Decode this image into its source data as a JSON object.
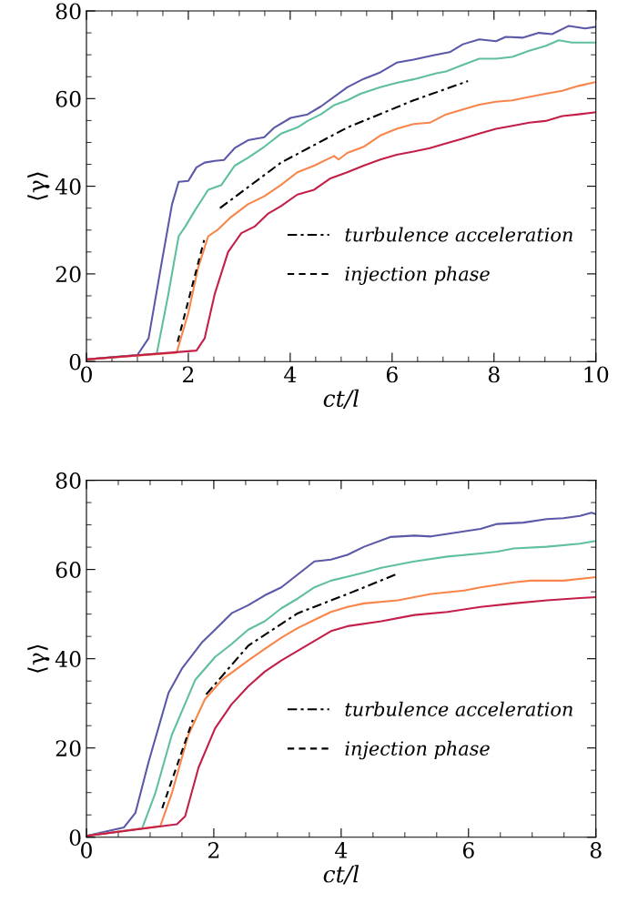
{
  "chart_data": [
    {
      "type": "line",
      "xlabel": "ct/l",
      "ylabel": "⟨γ⟩",
      "xlim": [
        0,
        10
      ],
      "ylim": [
        0,
        80
      ],
      "xticks": [
        0,
        2,
        4,
        6,
        8,
        10
      ],
      "yticks": [
        0,
        20,
        40,
        60,
        80
      ],
      "grid": false,
      "legend": "bottom right",
      "series": [
        {
          "color": "#5b58a8",
          "x": [
            0,
            1.0,
            1.22,
            1.48,
            1.68,
            1.81,
            2.0,
            2.16,
            2.32,
            2.52,
            2.7,
            2.91,
            3.17,
            3.49,
            3.69,
            4.01,
            4.34,
            4.6,
            5.12,
            5.44,
            5.77,
            6.09,
            6.42,
            6.81,
            7.13,
            7.39,
            7.71,
            8.04,
            8.23,
            8.56,
            8.88,
            9.14,
            9.47,
            9.79,
            10
          ],
          "values": [
            0.5,
            1.5,
            5.3,
            22.8,
            35.9,
            41,
            41.2,
            44.3,
            45.4,
            45.8,
            46,
            48.7,
            50.5,
            51.2,
            53.4,
            55.6,
            56.4,
            58.2,
            62.6,
            64.5,
            66,
            68.2,
            68.9,
            69.9,
            70.6,
            72.4,
            73.5,
            73.1,
            74.1,
            73.9,
            75,
            74.7,
            76.6,
            76,
            76.4
          ]
        },
        {
          "color": "#5fbf9f",
          "x": [
            0,
            1.38,
            1.61,
            1.81,
            1.94,
            2.13,
            2.39,
            2.65,
            2.91,
            3.17,
            3.49,
            3.82,
            4.14,
            4.34,
            4.6,
            4.86,
            5.12,
            5.38,
            5.77,
            6.09,
            6.42,
            6.87,
            7.06,
            7.39,
            7.71,
            8.04,
            8.36,
            8.69,
            9.01,
            9.27,
            9.53,
            10
          ],
          "values": [
            0.5,
            1.8,
            15.5,
            28.6,
            30.8,
            34.5,
            39.2,
            40.3,
            44.7,
            46.5,
            49,
            52,
            53.4,
            54.9,
            56.4,
            58.5,
            59.6,
            61.1,
            62.6,
            63.6,
            64.4,
            65.8,
            66.2,
            67.7,
            69.1,
            69.1,
            69.5,
            70.9,
            72,
            73.3,
            72.8,
            72.8
          ]
        },
        {
          "color": "#f8854a",
          "x": [
            0,
            1.77,
            2.0,
            2.19,
            2.39,
            2.58,
            2.84,
            3.17,
            3.49,
            3.82,
            4.14,
            4.47,
            4.86,
            4.95,
            5.12,
            5.44,
            5.77,
            6.09,
            6.42,
            6.74,
            7.06,
            7.39,
            7.71,
            8.04,
            8.36,
            8.69,
            9.01,
            9.34,
            9.66,
            10
          ],
          "values": [
            0.5,
            2,
            11.1,
            21.3,
            28.6,
            30.1,
            33,
            35.9,
            37.7,
            40.3,
            43.2,
            44.7,
            46.9,
            46.1,
            47.6,
            49,
            51.6,
            53.1,
            54.2,
            54.5,
            56.4,
            57.5,
            58.6,
            59.3,
            59.6,
            60.4,
            61.1,
            61.8,
            62.9,
            63.8
          ]
        },
        {
          "color": "#c41f48",
          "x": [
            0,
            2.16,
            2.32,
            2.52,
            2.78,
            3.04,
            3.3,
            3.56,
            3.82,
            4.14,
            4.47,
            4.79,
            5.12,
            5.44,
            5.77,
            6.09,
            6.42,
            6.74,
            7.06,
            7.39,
            7.71,
            8.04,
            8.36,
            8.69,
            9.01,
            9.34,
            9.66,
            10
          ],
          "values": [
            0.5,
            2.5,
            5.3,
            15.5,
            25,
            29.3,
            30.8,
            33.7,
            35.5,
            38.1,
            39.2,
            41.8,
            43.2,
            44.7,
            46.1,
            47.2,
            47.9,
            48.7,
            49.8,
            50.9,
            52,
            53.1,
            53.8,
            54.5,
            54.9,
            56,
            56.4,
            56.9
          ]
        },
        {
          "name": "turbulence acceleration",
          "color": "#000000",
          "line_style": "dashdot",
          "x": [
            2.62,
            3.82,
            5.12,
            6.42,
            7.49
          ],
          "values": [
            35,
            45.4,
            53.4,
            59.6,
            64
          ]
        },
        {
          "name": "injection phase",
          "color": "#000000",
          "line_style": "dashed",
          "x": [
            1.79,
            2.31
          ],
          "values": [
            4.5,
            27.7
          ]
        }
      ]
    },
    {
      "type": "line",
      "xlabel": "ct/l",
      "ylabel": "⟨γ⟩",
      "xlim": [
        0,
        8
      ],
      "ylim": [
        0,
        80
      ],
      "xticks": [
        0,
        2,
        4,
        6,
        8
      ],
      "yticks": [
        0,
        20,
        40,
        60,
        80
      ],
      "grid": false,
      "legend": "bottom right",
      "series": [
        {
          "color": "#5b58a8",
          "x": [
            0,
            0.59,
            0.77,
            0.98,
            1.29,
            1.5,
            1.81,
            2.02,
            2.28,
            2.54,
            2.8,
            3.06,
            3.32,
            3.58,
            3.84,
            4.1,
            4.36,
            4.78,
            5.15,
            5.41,
            5.67,
            6.19,
            6.45,
            6.86,
            7.23,
            7.49,
            7.75,
            7.93,
            8
          ],
          "values": [
            0.3,
            2.2,
            5.5,
            17.1,
            32.4,
            37.8,
            43.6,
            46.5,
            50.2,
            52,
            54.2,
            56,
            58.9,
            61.8,
            62.2,
            63.3,
            65.1,
            67.3,
            67.6,
            67.4,
            68,
            69.1,
            70.2,
            70.5,
            71.3,
            71.5,
            72,
            72.7,
            72.4
          ]
        },
        {
          "color": "#5fbf9f",
          "x": [
            0,
            0.875,
            1.08,
            1.34,
            1.71,
            2.02,
            2.28,
            2.54,
            2.8,
            3.06,
            3.32,
            3.58,
            3.84,
            4.1,
            4.36,
            4.63,
            4.89,
            5.15,
            5.67,
            6.19,
            6.45,
            6.71,
            7.23,
            7.75,
            8
          ],
          "values": [
            0.3,
            2,
            9.8,
            22.9,
            35.3,
            40.4,
            43.3,
            46.5,
            48.4,
            51.3,
            53.5,
            56,
            57.5,
            58.4,
            59.3,
            60.4,
            61.1,
            61.8,
            62.9,
            63.6,
            64,
            64.7,
            65.1,
            65.8,
            66.4
          ]
        },
        {
          "color": "#f8854a",
          "x": [
            0,
            1.16,
            1.34,
            1.6,
            1.86,
            2.13,
            2.54,
            2.8,
            3.06,
            3.32,
            3.58,
            3.84,
            4.1,
            4.36,
            4.89,
            5.15,
            5.41,
            5.93,
            6.19,
            6.71,
            6.97,
            7.49,
            8
          ],
          "values": [
            0.3,
            2.5,
            9.8,
            22.9,
            30.9,
            35.3,
            39.6,
            42.2,
            44.7,
            46.9,
            48.7,
            50.5,
            51.6,
            52.4,
            53.1,
            53.8,
            54.5,
            55.3,
            56,
            57.1,
            57.5,
            57.5,
            58.3
          ]
        },
        {
          "color": "#c41f48",
          "x": [
            0,
            1.42,
            1.55,
            1.76,
            2.02,
            2.28,
            2.54,
            2.8,
            3.06,
            3.32,
            3.58,
            3.84,
            4.1,
            4.63,
            5.15,
            5.67,
            6.19,
            6.71,
            7.23,
            7.75,
            8
          ],
          "values": [
            0.3,
            2.9,
            4.7,
            15.6,
            24.4,
            29.8,
            33.8,
            37.1,
            39.6,
            41.8,
            44,
            46.2,
            47.3,
            48.4,
            49.8,
            50.5,
            51.6,
            52.4,
            53.1,
            53.6,
            53.8
          ]
        },
        {
          "name": "turbulence acceleration",
          "color": "#000000",
          "line_style": "dashdot",
          "x": [
            1.88,
            2.54,
            3.32,
            4.1,
            4.86
          ],
          "values": [
            32,
            42.9,
            50.2,
            54.5,
            58.9
          ]
        },
        {
          "name": "injection phase",
          "color": "#000000",
          "line_style": "dashed",
          "x": [
            1.19,
            1.67
          ],
          "values": [
            6.5,
            26.3
          ]
        }
      ]
    }
  ]
}
